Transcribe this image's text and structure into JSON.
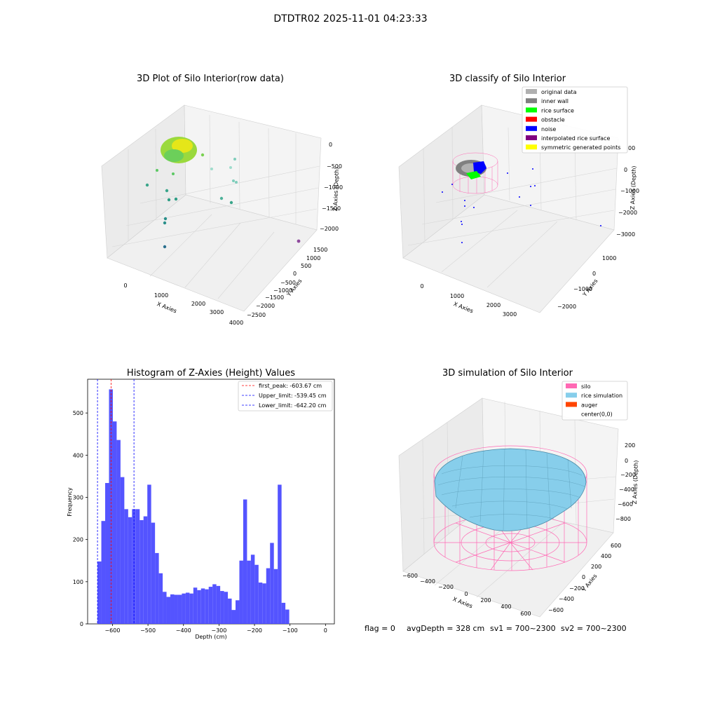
{
  "figure_title": "DTDTR02 2025-11-01 04:23:33",
  "footer": {
    "flag": "flag = 0",
    "avg_depth": "avgDepth = 328 cm",
    "sv1": "sv1 = 700~2300",
    "sv2": "sv2 = 700~2300"
  },
  "colors": {
    "hist_bar": "#4b4bff",
    "first_peak": "#ff0000",
    "limits": "#0000ff",
    "silo": "#ff69b4",
    "rice_sim": "#87ceeb",
    "auger": "#ff4500",
    "grid_pane": "#f2f2f2"
  },
  "chart_data": [
    {
      "id": "raw",
      "type": "scatter3d",
      "title": "3D Plot of Silo Interior(row data)",
      "xlabel": "X Axies",
      "ylabel": "Y Axies",
      "zlabel": "Z Axies (Depth)",
      "x_ticks": [
        "0",
        "1000",
        "2000",
        "3000",
        "4000"
      ],
      "y_ticks": [
        "1500",
        "1000",
        "500",
        "0",
        "−500",
        "−1000",
        "−1500",
        "−2000",
        "−2500"
      ],
      "z_ticks": [
        "0",
        "−500",
        "−1000",
        "−1500",
        "−2000"
      ],
      "points": [
        {
          "x": 250,
          "y": 100,
          "z": -50,
          "c": "#6ccf5a"
        },
        {
          "x": 820,
          "y": -400,
          "z": -2050,
          "c": "#2a7f8e"
        },
        {
          "x": 400,
          "y": 300,
          "z": -400,
          "c": "#5cc863"
        },
        {
          "x": 1900,
          "y": 100,
          "z": -1100,
          "c": "#4fb29a"
        },
        {
          "x": 2300,
          "y": -700,
          "z": -1300,
          "c": "#3aa58a"
        },
        {
          "x": 3800,
          "y": -1900,
          "z": -2100,
          "c": "#8e4a9d"
        }
      ]
    },
    {
      "id": "classify",
      "type": "scatter3d",
      "title": "3D classify of Silo Interior",
      "xlabel": "X Axies",
      "ylabel": "Y Axies",
      "zlabel": "Z Axies (Depth)",
      "x_ticks": [
        "0",
        "1000",
        "2000",
        "3000"
      ],
      "y_ticks": [
        "1000",
        "0",
        "−1000",
        "−2000"
      ],
      "z_ticks": [
        "1000",
        "0",
        "−1000",
        "−2000",
        "−3000"
      ],
      "legend": [
        {
          "label": "original data",
          "color": "#b0b0b0"
        },
        {
          "label": "inner wall",
          "color": "#808080"
        },
        {
          "label": "rice surface",
          "color": "#00ff00"
        },
        {
          "label": "obstacle",
          "color": "#ff0000"
        },
        {
          "label": "noise",
          "color": "#0000ff"
        },
        {
          "label": "interpolated rice surface",
          "color": "#800080"
        },
        {
          "label": "symmetric generated points",
          "color": "#ffff00"
        }
      ]
    },
    {
      "id": "histogram",
      "type": "bar",
      "title": "Histogram of Z-Axies (Height) Values",
      "xlabel": "Depth (cm)",
      "ylabel": "Frequency",
      "xlim": [
        -670,
        25
      ],
      "ylim": [
        0,
        580
      ],
      "x_ticks": [
        -600,
        -500,
        -400,
        -300,
        -200,
        -100,
        0
      ],
      "y_ticks": [
        0,
        100,
        200,
        300,
        400,
        500
      ],
      "bin_width": 10.8,
      "bin_start": -642.2,
      "values": [
        148,
        244,
        334,
        556,
        480,
        436,
        348,
        272,
        253,
        272,
        272,
        246,
        255,
        330,
        240,
        168,
        120,
        76,
        64,
        70,
        69,
        69,
        72,
        74,
        72,
        86,
        80,
        84,
        82,
        88,
        94,
        90,
        78,
        76,
        60,
        33,
        56,
        150,
        295,
        150,
        164,
        140,
        98,
        96,
        132,
        192,
        130,
        330,
        50,
        34
      ],
      "lines": [
        {
          "label": "first_peak: -603.67 cm",
          "x": -603.67,
          "color": "#ff0000"
        },
        {
          "label": "Upper_limit: -539.45 cm",
          "x": -539.45,
          "color": "#0000ff"
        },
        {
          "label": "Lower_limit: -642.20 cm",
          "x": -642.2,
          "color": "#0000ff"
        }
      ]
    },
    {
      "id": "simulation",
      "type": "surface3d",
      "title": "3D simulation of Silo Interior",
      "xlabel": "X Axies",
      "ylabel": "Y Axies",
      "zlabel": "Z Axies (Depth)",
      "x_ticks": [
        "−600",
        "−400",
        "−200",
        "0",
        "200",
        "400",
        "600"
      ],
      "y_ticks": [
        "600",
        "400",
        "200",
        "0",
        "−200",
        "−400",
        "−600"
      ],
      "z_ticks": [
        "200",
        "0",
        "−200",
        "−400",
        "−600",
        "−800"
      ],
      "legend": [
        {
          "label": "silo",
          "color": "#ff69b4"
        },
        {
          "label": "rice simulation",
          "color": "#87ceeb"
        },
        {
          "label": "auger",
          "color": "#ff4500"
        },
        {
          "label": "center(0,0)",
          "color": "#ffffff"
        }
      ]
    }
  ]
}
